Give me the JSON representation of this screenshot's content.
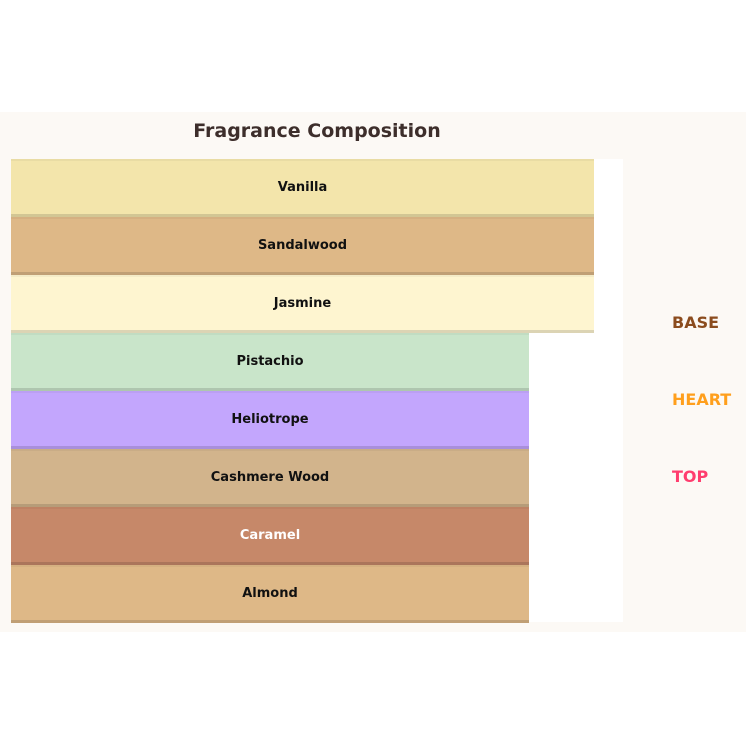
{
  "title": "Fragrance Composition",
  "layers": [
    {
      "label": "Vanilla",
      "color": "#f3e5ab",
      "text_color": "#111111"
    },
    {
      "label": "Sandalwood",
      "color": "#deb887",
      "text_color": "#111111"
    },
    {
      "label": "Jasmine",
      "color": "#fef5d0",
      "text_color": "#111111"
    },
    {
      "label": "Pistachio",
      "color": "#c9e5ca",
      "text_color": "#111111"
    },
    {
      "label": "Heliotrope",
      "color": "#c3a6fd",
      "text_color": "#111111"
    },
    {
      "label": "Cashmere Wood",
      "color": "#d2b48c",
      "text_color": "#111111"
    },
    {
      "label": "Caramel",
      "color": "#c68869",
      "text_color": "#ffffff"
    },
    {
      "label": "Almond",
      "color": "#deb887",
      "text_color": "#111111"
    }
  ],
  "legend": [
    {
      "label": "BASE",
      "color": "#8b4c1e"
    },
    {
      "label": "HEART",
      "color": "#ff9f1c"
    },
    {
      "label": "TOP",
      "color": "#ff3d6e"
    }
  ]
}
